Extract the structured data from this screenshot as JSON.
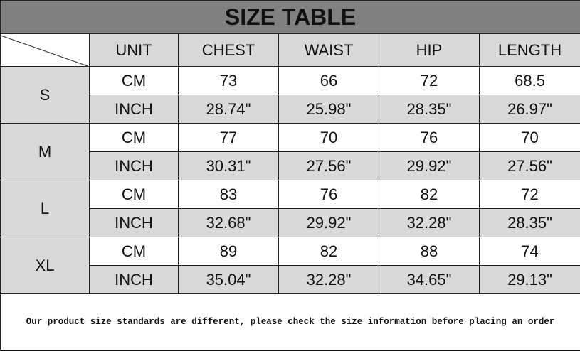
{
  "title": "SIZE TABLE",
  "headers": [
    "UNIT",
    "CHEST",
    "WAIST",
    "HIP",
    "LENGTH"
  ],
  "sizes": [
    {
      "size": "S",
      "rows": [
        [
          "CM",
          "73",
          "66",
          "72",
          "68.5"
        ],
        [
          "INCH",
          "28.74\"",
          "25.98\"",
          "28.35\"",
          "26.97\""
        ]
      ]
    },
    {
      "size": "M",
      "rows": [
        [
          "CM",
          "77",
          "70",
          "76",
          "70"
        ],
        [
          "INCH",
          "30.31\"",
          "27.56\"",
          "29.92\"",
          "27.56\""
        ]
      ]
    },
    {
      "size": "L",
      "rows": [
        [
          "CM",
          "83",
          "76",
          "82",
          "72"
        ],
        [
          "INCH",
          "32.68\"",
          "29.92\"",
          "32.28\"",
          "28.35\""
        ]
      ]
    },
    {
      "size": "XL",
      "rows": [
        [
          "CM",
          "89",
          "82",
          "88",
          "74"
        ],
        [
          "INCH",
          "35.04\"",
          "32.28\"",
          "34.65\"",
          "29.13\""
        ]
      ]
    }
  ],
  "footer": "Our product size standards are different, please check the size information before placing an order",
  "colors": {
    "title_bg": "#808080",
    "cell_gray": "#d9d9d9"
  }
}
